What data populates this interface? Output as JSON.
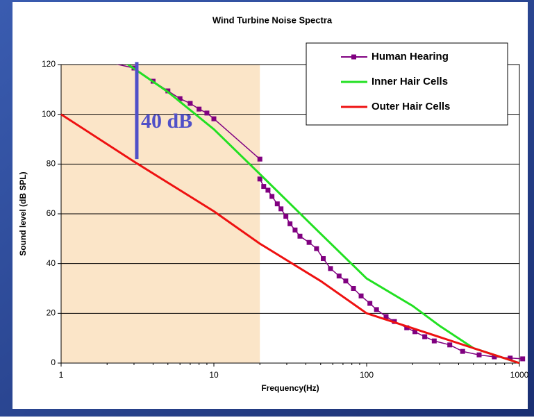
{
  "chart_data": {
    "type": "line",
    "title": "Wind Turbine Noise Spectra",
    "xlabel": "Frequency(Hz)",
    "ylabel": "Sound level (dB SPL)",
    "xscale": "log",
    "xlim": [
      1,
      1000
    ],
    "xticks": [
      1,
      10,
      100,
      1000
    ],
    "ylim": [
      0,
      120
    ],
    "yticks": [
      0,
      20,
      40,
      60,
      80,
      100,
      120
    ],
    "grid": true,
    "legend": "top-right",
    "shaded_region": {
      "x": [
        1,
        20
      ],
      "color": "#fbe5c8"
    },
    "annotation": {
      "text": "40 dB",
      "x": 3,
      "y": [
        82,
        121
      ],
      "color": "#5050c8"
    },
    "series": [
      {
        "name": "Human Hearing",
        "color": "#800080",
        "marker": "square",
        "x": [
          2,
          3,
          4,
          5,
          6,
          7,
          8,
          9,
          10,
          20,
          20,
          20,
          21.2,
          22.6,
          24,
          26,
          27.5,
          29.6,
          31.5,
          34,
          36.6,
          42,
          47,
          52,
          58,
          66,
          73,
          82,
          92,
          105,
          116,
          134,
          152,
          183,
          207,
          240,
          277,
          350,
          425,
          545,
          685,
          870,
          1050
        ],
        "values": [
          121,
          118.6,
          113.3,
          109.4,
          106.3,
          104.4,
          102.1,
          100.5,
          98.2,
          82,
          null,
          74,
          71,
          69.5,
          67,
          64,
          62,
          59,
          56,
          53.5,
          51,
          48.5,
          46,
          42,
          38,
          35,
          33,
          30,
          27,
          24,
          21.5,
          18.7,
          16.7,
          14.2,
          12.6,
          10.6,
          8.9,
          7.3,
          4.7,
          3.3,
          2.5,
          2,
          1.7
        ]
      },
      {
        "name": "Inner Hair Cells",
        "color": "#22e022",
        "x": [
          2.6,
          5,
          10,
          20,
          50,
          100,
          200,
          300,
          500,
          1000
        ],
        "values": [
          121,
          109,
          94,
          76,
          52,
          34,
          23,
          15,
          6,
          0
        ]
      },
      {
        "name": "Outer Hair Cells",
        "color": "#ee1111",
        "x": [
          1,
          3,
          10,
          20,
          50,
          100,
          200,
          500,
          1000
        ],
        "values": [
          100,
          81,
          61,
          48,
          33,
          20,
          14,
          6,
          0
        ]
      }
    ]
  }
}
